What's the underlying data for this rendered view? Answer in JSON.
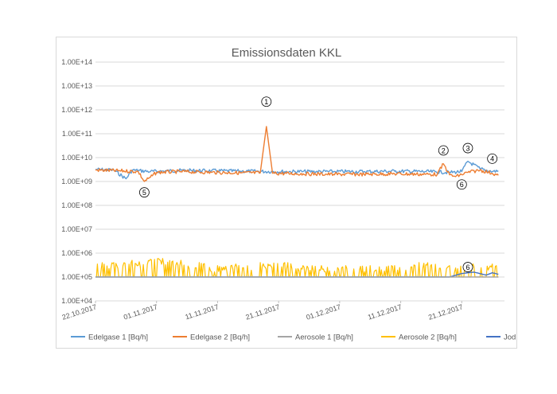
{
  "chart_data": {
    "type": "line",
    "title": "Emissionsdaten KKL",
    "xlabel": "",
    "ylabel": "",
    "y_scale": "log",
    "ylim": [
      10000.0,
      100000000000000.0
    ],
    "y_ticks": [
      "1.00E+04",
      "1.00E+05",
      "1.00E+06",
      "1.00E+07",
      "1.00E+08",
      "1.00E+09",
      "1.00E+10",
      "1.00E+11",
      "1.00E+12",
      "1.00E+13",
      "1.00E+14"
    ],
    "x_ticks": [
      "22.10.2017",
      "01.11.2017",
      "11.11.2017",
      "21.11.2017",
      "01.12.2017",
      "11.12.2017",
      "21.12.2017"
    ],
    "xlim": [
      "2017-10-22",
      "2017-12-28"
    ],
    "grid": true,
    "legend_position": "bottom",
    "series": [
      {
        "name": "Edelgase 1 [Bq/h]",
        "color": "#5b9bd5",
        "x": [
          "2017-10-22",
          "2017-10-25",
          "2017-10-27",
          "2017-10-28",
          "2017-10-31",
          "2017-11-05",
          "2017-11-10",
          "2017-11-15",
          "2017-11-20",
          "2017-11-25",
          "2017-11-30",
          "2017-12-05",
          "2017-12-10",
          "2017-12-15",
          "2017-12-19",
          "2017-12-21",
          "2017-12-22",
          "2017-12-24",
          "2017-12-26",
          "2017-12-27"
        ],
        "values": [
          3200000000.0,
          3000000000.0,
          1300000000.0,
          3000000000.0,
          2600000000.0,
          2900000000.0,
          2800000000.0,
          2700000000.0,
          2600000000.0,
          2600000000.0,
          2600000000.0,
          2600000000.0,
          2700000000.0,
          2600000000.0,
          2400000000.0,
          2600000000.0,
          7000000000.0,
          3400000000.0,
          2600000000.0,
          2800000000.0
        ]
      },
      {
        "name": "Edelgase 2 [Bq/h]",
        "color": "#ed7d31",
        "x": [
          "2017-10-22",
          "2017-10-26",
          "2017-10-29",
          "2017-10-30",
          "2017-10-31",
          "2017-11-01",
          "2017-11-05",
          "2017-11-10",
          "2017-11-15",
          "2017-11-18",
          "2017-11-19",
          "2017-11-20",
          "2017-11-25",
          "2017-11-30",
          "2017-12-05",
          "2017-12-10",
          "2017-12-15",
          "2017-12-17",
          "2017-12-18",
          "2017-12-19",
          "2017-12-20",
          "2017-12-22",
          "2017-12-24",
          "2017-12-26",
          "2017-12-27"
        ],
        "values": [
          3000000000.0,
          2800000000.0,
          2600000000.0,
          1000000000.0,
          1500000000.0,
          2400000000.0,
          2600000000.0,
          2400000000.0,
          2300000000.0,
          2300000000.0,
          200000000000.0,
          2200000000.0,
          2100000000.0,
          2000000000.0,
          2000000000.0,
          2100000000.0,
          2000000000.0,
          2000000000.0,
          5500000000.0,
          1900000000.0,
          1600000000.0,
          2400000000.0,
          3000000000.0,
          2200000000.0,
          1800000000.0
        ]
      },
      {
        "name": "Aerosole 1 [Bq/h]",
        "color": "#a5a5a5",
        "x": [
          "2017-10-22",
          "2017-12-27"
        ],
        "values": [
          100000.0,
          100000.0
        ]
      },
      {
        "name": "Aerosole 2 [Bq/h]",
        "color": "#ffc000",
        "x": [
          "2017-10-22",
          "2017-10-25",
          "2017-10-26",
          "2017-10-28",
          "2017-10-30",
          "2017-10-31",
          "2017-11-01",
          "2017-11-02",
          "2017-11-03",
          "2017-11-05",
          "2017-11-06",
          "2017-11-08",
          "2017-11-09",
          "2017-11-11",
          "2017-11-13",
          "2017-11-14",
          "2017-11-17",
          "2017-11-18",
          "2017-11-21",
          "2017-11-22",
          "2017-11-24",
          "2017-11-25",
          "2017-11-26",
          "2017-11-28",
          "2017-11-30",
          "2017-12-02",
          "2017-12-03",
          "2017-12-06",
          "2017-12-08",
          "2017-12-10",
          "2017-12-12",
          "2017-12-14",
          "2017-12-17",
          "2017-12-19",
          "2017-12-21",
          "2017-12-22",
          "2017-12-24",
          "2017-12-26",
          "2017-12-27"
        ],
        "values": [
          100000.0,
          400000.0,
          100000.0,
          500000.0,
          100000.0,
          550000.0,
          100000.0,
          600000.0,
          100000.0,
          500000.0,
          100000.0,
          400000.0,
          100000.0,
          300000.0,
          100000.0,
          350000.0,
          100000.0,
          400000.0,
          100000.0,
          400000.0,
          100000.0,
          300000.0,
          100000.0,
          300000.0,
          100000.0,
          300000.0,
          100000.0,
          300000.0,
          100000.0,
          300000.0,
          100000.0,
          400000.0,
          100000.0,
          300000.0,
          100000.0,
          400000.0,
          100000.0,
          350000.0,
          100000.0
        ]
      },
      {
        "name": "Jod [Bq/h]",
        "color": "#4472c4",
        "x": [
          "2017-10-22",
          "2017-12-19",
          "2017-12-21",
          "2017-12-23",
          "2017-12-25",
          "2017-12-26",
          "2017-12-27"
        ],
        "values": [
          100000.0,
          100000.0,
          140000.0,
          160000.0,
          120000.0,
          150000.0,
          130000.0
        ]
      }
    ],
    "annotations": [
      {
        "label": "①",
        "x": "2017-11-19",
        "y": 2200000000000.0
      },
      {
        "label": "②",
        "x": "2017-12-18",
        "y": 20000000000.0
      },
      {
        "label": "③",
        "x": "2017-12-22",
        "y": 25000000000.0
      },
      {
        "label": "④",
        "x": "2017-12-26",
        "y": 9000000000.0
      },
      {
        "label": "⑤",
        "x": "2017-10-30",
        "y": 350000000.0
      },
      {
        "label": "⑥",
        "x": "2017-12-21",
        "y": 750000000.0
      },
      {
        "label": "⑥",
        "x": "2017-12-22",
        "y": 260000.0
      }
    ]
  }
}
